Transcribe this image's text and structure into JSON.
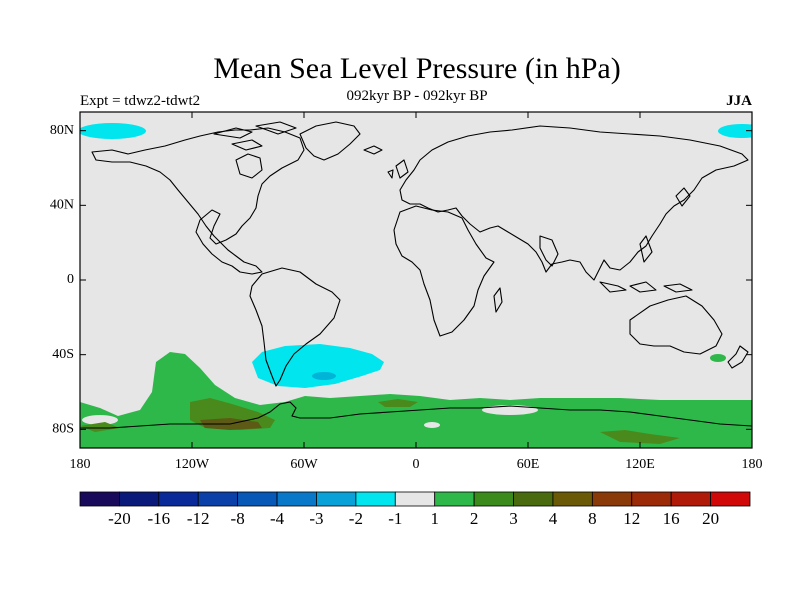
{
  "map": {
    "title": "Mean Sea Level Pressure (in hPa)",
    "left_label": "Expt = tdwz2-tdwt2",
    "center_label": "092kyr BP - 092kyr BP",
    "right_label": "JJA",
    "lat_ticks": [
      "80N",
      "40N",
      "0",
      "40S",
      "80S"
    ],
    "lon_ticks": [
      "180",
      "120W",
      "60W",
      "0",
      "60E",
      "120E",
      "180"
    ],
    "colors": {
      "background_neutral": "#e6e6e6",
      "cyan": "#00e5ee",
      "blue": "#00b4d8",
      "green": "#2eb84a",
      "olive": "#4a8a1c",
      "brown": "#5c5a14"
    }
  },
  "colorbar": {
    "colors": [
      "#1a0a5c",
      "#0a1a7a",
      "#0a2a9a",
      "#0a40a8",
      "#0858b8",
      "#0a78c8",
      "#0aa0d8",
      "#00e5ee",
      "#e6e6e6",
      "#2eb84a",
      "#3a8a1c",
      "#4a6a10",
      "#6a5a08",
      "#8a3a08",
      "#9a2a08",
      "#b01a08",
      "#d00808"
    ],
    "labels": [
      "-20",
      "-16",
      "-12",
      "-8",
      "-4",
      "-3",
      "-2",
      "-1",
      "1",
      "2",
      "3",
      "4",
      "8",
      "12",
      "16",
      "20"
    ]
  }
}
